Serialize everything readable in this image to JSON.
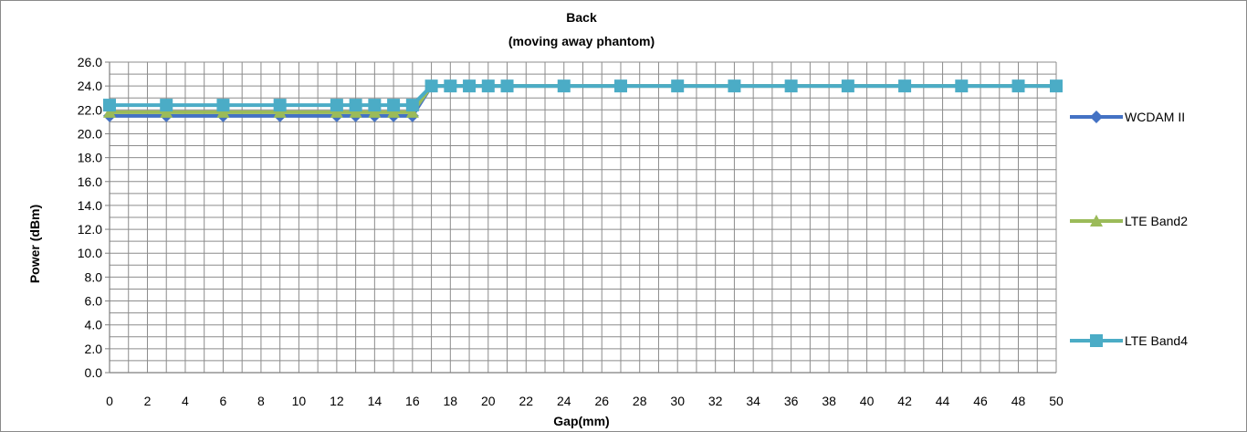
{
  "chart_data": {
    "type": "line",
    "title": "Back",
    "subtitle": "(moving away phantom)",
    "xlabel": "Gap(mm)",
    "ylabel": "Power (dBm)",
    "xlim": [
      0,
      50
    ],
    "ylim": [
      0,
      26
    ],
    "x_ticks": [
      0,
      2,
      4,
      6,
      8,
      10,
      12,
      14,
      16,
      18,
      20,
      22,
      24,
      26,
      28,
      30,
      32,
      34,
      36,
      38,
      40,
      42,
      44,
      46,
      48,
      50
    ],
    "y_ticks": [
      "0.0",
      "2.0",
      "4.0",
      "6.0",
      "8.0",
      "10.0",
      "12.0",
      "14.0",
      "16.0",
      "18.0",
      "20.0",
      "22.0",
      "24.0",
      "26.0"
    ],
    "grid": true,
    "legend_position": "right",
    "x": [
      0,
      3,
      6,
      9,
      12,
      13,
      14,
      15,
      16,
      17,
      18,
      19,
      20,
      21,
      24,
      27,
      30,
      33,
      36,
      39,
      42,
      45,
      48,
      50
    ],
    "series": [
      {
        "name": "WCDAM II",
        "marker": "diamond",
        "color": "#4472C4",
        "values": [
          21.5,
          21.5,
          21.5,
          21.5,
          21.5,
          21.5,
          21.5,
          21.5,
          21.5,
          24.0,
          24.0,
          24.0,
          24.0,
          24.0,
          24.0,
          24.0,
          24.0,
          24.0,
          24.0,
          24.0,
          24.0,
          24.0,
          24.0,
          24.0
        ]
      },
      {
        "name": "LTE Band2",
        "marker": "triangle",
        "color": "#9BBB59",
        "values": [
          21.8,
          21.8,
          21.8,
          21.8,
          21.8,
          21.8,
          21.8,
          21.8,
          21.8,
          24.0,
          24.0,
          24.0,
          24.0,
          24.0,
          24.0,
          24.0,
          24.0,
          24.0,
          24.0,
          24.0,
          24.0,
          24.0,
          24.0,
          24.0
        ]
      },
      {
        "name": "LTE Band4",
        "marker": "square",
        "color": "#4BACC6",
        "values": [
          22.4,
          22.4,
          22.4,
          22.4,
          22.4,
          22.4,
          22.4,
          22.4,
          22.4,
          24.0,
          24.0,
          24.0,
          24.0,
          24.0,
          24.0,
          24.0,
          24.0,
          24.0,
          24.0,
          24.0,
          24.0,
          24.0,
          24.0,
          24.0
        ]
      }
    ]
  }
}
